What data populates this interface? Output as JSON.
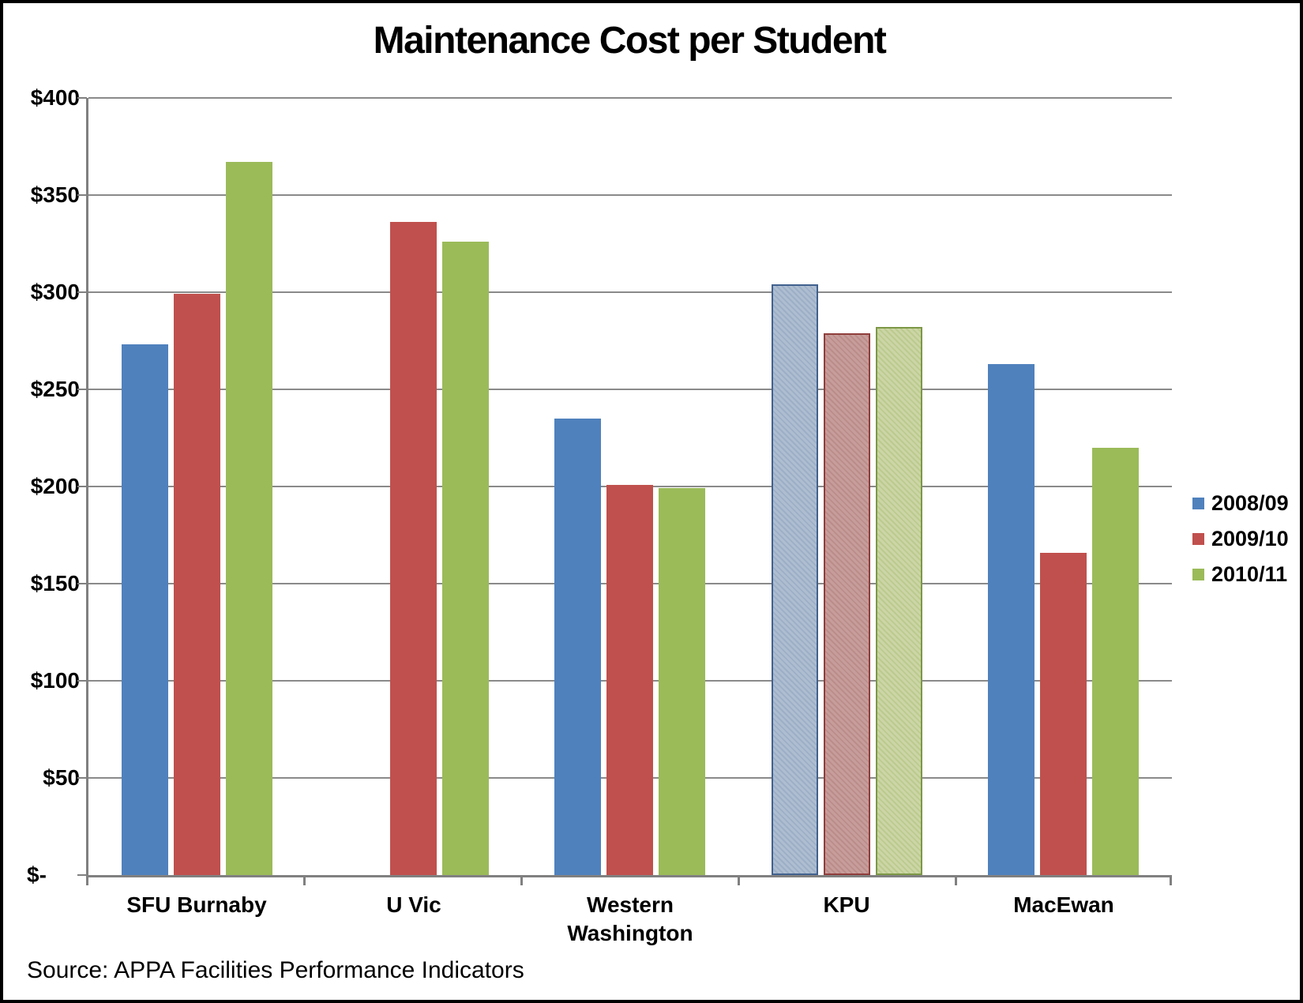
{
  "title": "Maintenance Cost per Student",
  "source_note": "Source: APPA Facilities Performance Indicators",
  "chart_data": {
    "type": "bar",
    "title": "Maintenance Cost per Student",
    "categories": [
      "SFU Burnaby",
      "U Vic",
      "Western Washington",
      "KPU",
      "MacEwan"
    ],
    "series": [
      {
        "name": "2008/09",
        "color": "#4F81BD",
        "values": [
          273,
          null,
          235,
          304,
          263
        ]
      },
      {
        "name": "2009/10",
        "color": "#C0504D",
        "values": [
          299,
          336,
          201,
          279,
          166
        ]
      },
      {
        "name": "2010/11",
        "color": "#9BBB59",
        "values": [
          367,
          326,
          199,
          282,
          220
        ]
      }
    ],
    "pattern_category": "KPU",
    "pattern_fills": [
      {
        "bg": "#AEBDD0",
        "line": "#9CAFC6",
        "border": "#41618E"
      },
      {
        "bg": "#C79D9B",
        "line": "#BA8D8A",
        "border": "#8F3E3C"
      },
      {
        "bg": "#CBD5A6",
        "line": "#BCCA8E",
        "border": "#7D9847"
      }
    ],
    "xlabel": "",
    "ylabel": "",
    "ylim": [
      0,
      400
    ],
    "ytick_step": 50,
    "yticks_topdown": [
      "$400",
      "$350",
      "$300",
      "$250",
      "$200",
      "$150",
      "$100",
      "$50",
      "$-"
    ],
    "grid": true,
    "legend_position": "right",
    "legend": [
      "2008/09",
      "2009/10",
      "2010/11"
    ],
    "colors": {
      "gridline": "#8A8A8A",
      "axis": "#808080",
      "text": "#000000",
      "background": "#FFFFFF",
      "frame_border": "#000000"
    }
  }
}
